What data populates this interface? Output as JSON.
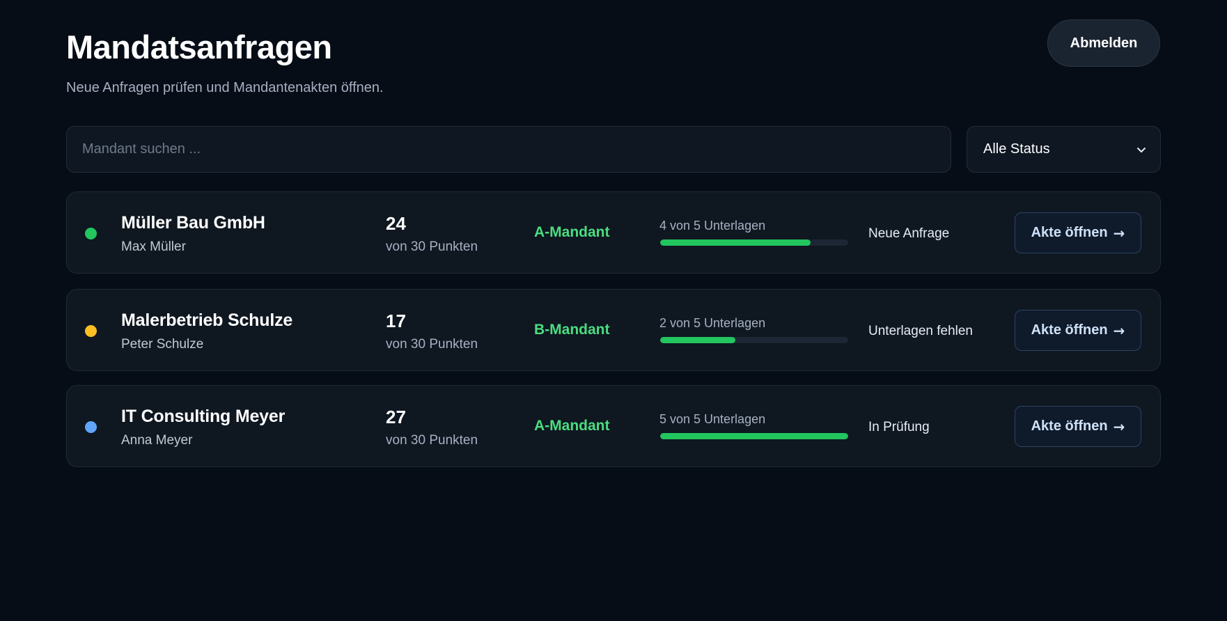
{
  "header": {
    "title": "Mandatsanfragen",
    "subtitle": "Neue Anfragen prüfen und Mandantenakten öffnen.",
    "logout_label": "Abmelden"
  },
  "filters": {
    "search_placeholder": "Mandant suchen ...",
    "search_value": "",
    "status_selected": "Alle Status"
  },
  "colors": {
    "accent_green": "#22c55e",
    "tier_green": "#4ade80",
    "dot_green": "#22c55e",
    "dot_yellow": "#fbbf24",
    "dot_blue": "#60a5fa"
  },
  "requests": [
    {
      "status_dot_color": "#22c55e",
      "company": "Müller Bau GmbH",
      "contact": "Max Müller",
      "score": "24",
      "score_sub": "von 30 Punkten",
      "tier": "A-Mandant",
      "docs_label": "4 von 5 Unterlagen",
      "docs_fraction": 0.8,
      "status": "Neue Anfrage",
      "action_label": "Akte öffnen",
      "action_arrow": "→"
    },
    {
      "status_dot_color": "#fbbf24",
      "company": "Malerbetrieb Schulze",
      "contact": "Peter Schulze",
      "score": "17",
      "score_sub": "von 30 Punkten",
      "tier": "B-Mandant",
      "docs_label": "2 von 5 Unterlagen",
      "docs_fraction": 0.4,
      "status": "Unterlagen fehlen",
      "action_label": "Akte öffnen",
      "action_arrow": "→"
    },
    {
      "status_dot_color": "#60a5fa",
      "company": "IT Consulting Meyer",
      "contact": "Anna Meyer",
      "score": "27",
      "score_sub": "von 30 Punkten",
      "tier": "A-Mandant",
      "docs_label": "5 von 5 Unterlagen",
      "docs_fraction": 1.0,
      "status": "In Prüfung",
      "action_label": "Akte öffnen",
      "action_arrow": "→"
    }
  ]
}
